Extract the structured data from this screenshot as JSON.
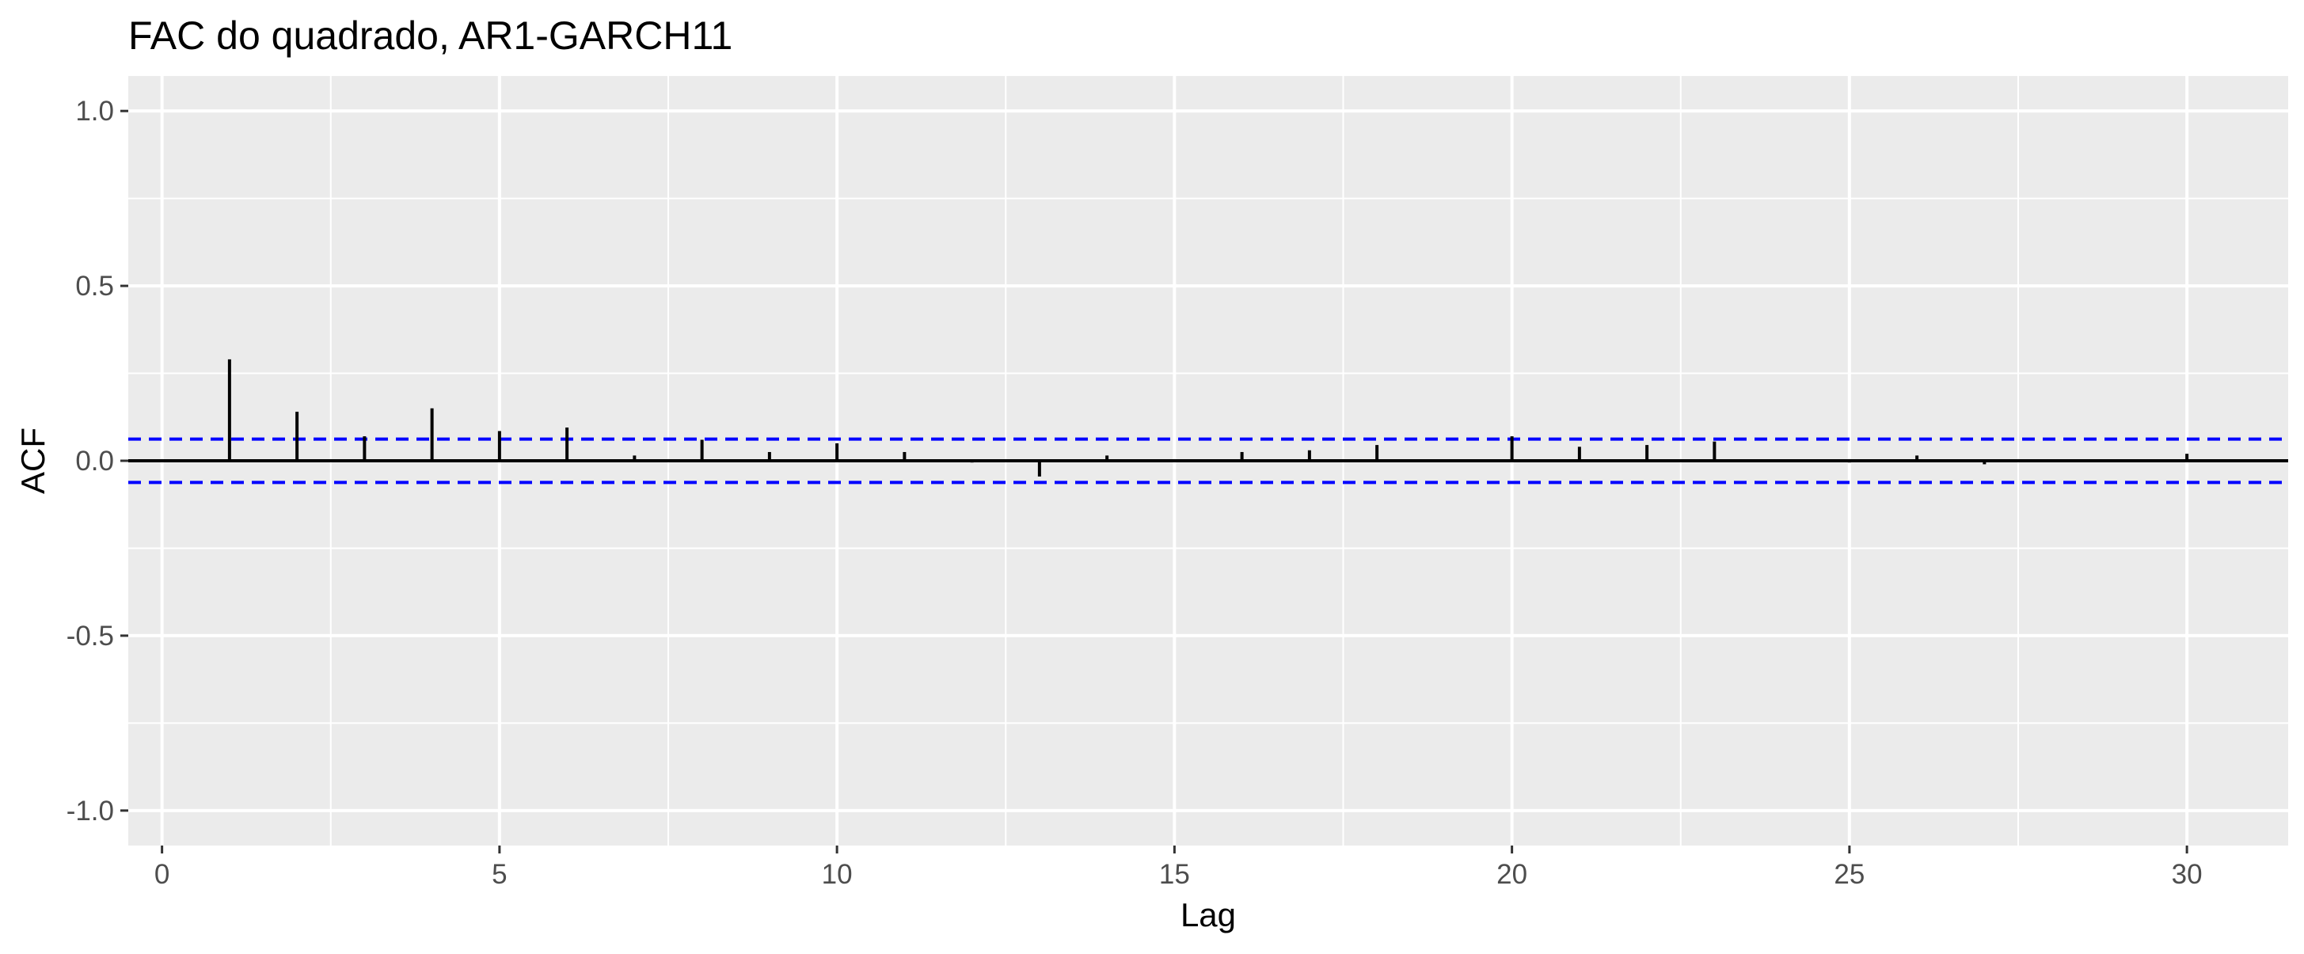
{
  "chart_data": {
    "type": "bar",
    "title": "FAC do quadrado, AR1-GARCH11",
    "xlabel": "Lag",
    "ylabel": "ACF",
    "xlim": [
      -0.5,
      31.5
    ],
    "ylim": [
      -1.1,
      1.1
    ],
    "x_ticks": [
      0,
      5,
      10,
      15,
      20,
      25,
      30
    ],
    "x_tick_labels": [
      "0",
      "5",
      "10",
      "15",
      "20",
      "25",
      "30"
    ],
    "y_ticks": [
      -1.0,
      -0.5,
      0.0,
      0.5,
      1.0
    ],
    "y_tick_labels": [
      "-1.0",
      "-0.5",
      "0.0",
      "0.5",
      "1.0"
    ],
    "confidence_limit": 0.062,
    "lags": [
      1,
      2,
      3,
      4,
      5,
      6,
      7,
      8,
      9,
      10,
      11,
      12,
      13,
      14,
      15,
      16,
      17,
      18,
      19,
      20,
      21,
      22,
      23,
      24,
      25,
      26,
      27,
      28,
      29,
      30
    ],
    "values": [
      0.29,
      0.14,
      0.07,
      0.15,
      0.085,
      0.095,
      0.015,
      0.06,
      0.025,
      0.05,
      0.025,
      -0.005,
      -0.045,
      0.015,
      0.0,
      0.025,
      0.03,
      0.045,
      0.0,
      0.07,
      0.04,
      0.045,
      0.055,
      0.0,
      -0.005,
      0.015,
      -0.01,
      0.0,
      0.0,
      0.02
    ],
    "grid": true,
    "colors": {
      "panel_background": "#ebebeb",
      "grid": "#ffffff",
      "bars": "#000000",
      "confidence_lines": "#0000ff"
    }
  }
}
